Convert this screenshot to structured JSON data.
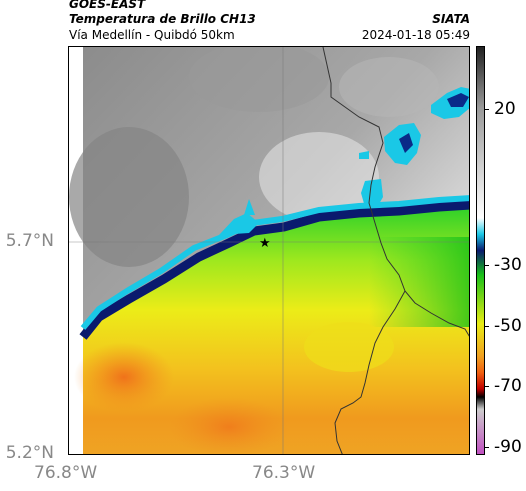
{
  "header": {
    "satellite": "GOES-EAST",
    "title": "Temperatura de Brillo CH13",
    "subtitle": "Vía Medellín - Quibdó 50km",
    "organization": "SIATA",
    "datetime": "2024-01-18 05:49"
  },
  "map": {
    "lat_labels": [
      "5.7°N",
      "5.2°N"
    ],
    "lon_labels": [
      "76.8°W",
      "76.3°W"
    ],
    "gridlines": true,
    "marker_icon": "star-icon"
  },
  "colorbar": {
    "tick_labels": [
      "20",
      "-30",
      "-50",
      "-70",
      "-90"
    ],
    "colors": [
      "#222222",
      "#9a9a9a",
      "#ffffff",
      "#1ac8e6",
      "#0a1a6e",
      "#18c018",
      "#e8ec14",
      "#f0a020",
      "#f06010",
      "#c00000",
      "#000000",
      "#cccccc",
      "#c050c0"
    ]
  }
}
